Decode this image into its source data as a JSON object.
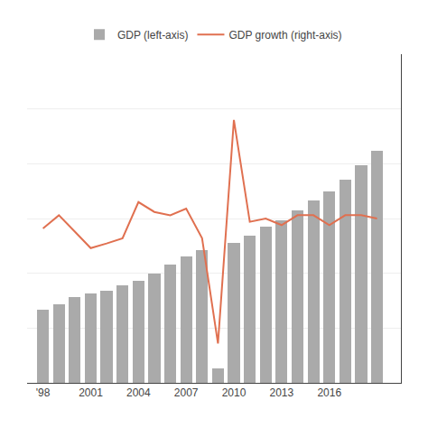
{
  "chart_data": {
    "type": "bar",
    "x": [
      1998,
      1999,
      2000,
      2001,
      2002,
      2003,
      2004,
      2005,
      2006,
      2007,
      2008,
      2009,
      2010,
      2011,
      2012,
      2013,
      2014,
      2015,
      2016,
      2017,
      2018,
      2019
    ],
    "series": [
      {
        "name": "GDP (left-axis)",
        "type": "bar",
        "color": "#aaaaaa",
        "values": [
          1.0,
          1.08,
          1.18,
          1.22,
          1.26,
          1.34,
          1.4,
          1.5,
          1.62,
          1.73,
          1.82,
          0.2,
          1.92,
          2.02,
          2.14,
          2.22,
          2.36,
          2.5,
          2.62,
          2.78,
          2.98,
          3.18
        ]
      },
      {
        "name": "GDP growth (right-axis)",
        "type": "line",
        "color": "#E07050",
        "axis": "y2",
        "values": [
          3.5,
          5.5,
          3.0,
          0.5,
          1.2,
          2.0,
          7.5,
          6.0,
          5.5,
          6.5,
          2.0,
          -14.0,
          20.0,
          4.5,
          5.0,
          4.0,
          5.5,
          5.5,
          4.0,
          5.5,
          5.5,
          5.0
        ]
      }
    ],
    "xlim": [
      1997.0,
      2020.5
    ],
    "xticks": [
      {
        "value": 1998,
        "label": "'98"
      },
      2001,
      2004,
      2007,
      2010,
      2013,
      2016
    ],
    "ylim": [
      0,
      4.5
    ],
    "yticks": [
      0,
      0.75,
      1.5,
      2.25,
      3.0,
      3.75,
      4.5
    ],
    "y2lim": [
      -20,
      30
    ],
    "grid": true,
    "legend": "top",
    "tick_labels": "x"
  }
}
